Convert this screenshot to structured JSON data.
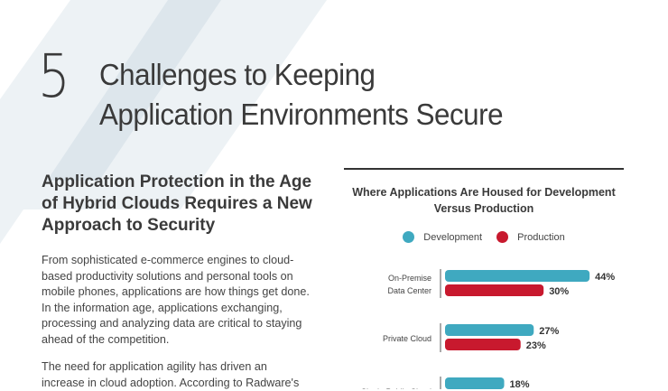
{
  "header": {
    "number": "5",
    "title_line1": "Challenges to Keeping",
    "title_line2": "Application Environments Secure"
  },
  "section": {
    "heading": "Application Protection in the Age of Hybrid Clouds Requires a New Approach to Security",
    "paragraphs": [
      "From sophisticated e-commerce engines to cloud-based productivity solutions and personal tools on mobile phones, applications are how things get done. In the information age, applications exchanging, processing and analyzing data are critical to staying ahead of the competition.",
      "The need for application agility has driven an increase in cloud adoption. According to Radware's"
    ]
  },
  "colors": {
    "development": "#3fa9c0",
    "production": "#c8192e",
    "stripe_light": "#edf2f5",
    "stripe_dark": "#dde6ec"
  },
  "chart_data": {
    "type": "bar",
    "orientation": "horizontal",
    "title": "Where Applications Are Housed for Development Versus Production",
    "legend": {
      "placement": "top",
      "entries": [
        "Development",
        "Production"
      ]
    },
    "categories": [
      "On-Premise Data Center",
      "Private Cloud",
      "Single Public Cloud"
    ],
    "series": [
      {
        "name": "Development",
        "values": [
          44,
          27,
          18
        ],
        "labels": [
          "44%",
          "27%",
          "18%"
        ]
      },
      {
        "name": "Production",
        "values": [
          30,
          23,
          null
        ],
        "labels": [
          "30%",
          "23%",
          ""
        ]
      }
    ],
    "unit": "%"
  }
}
